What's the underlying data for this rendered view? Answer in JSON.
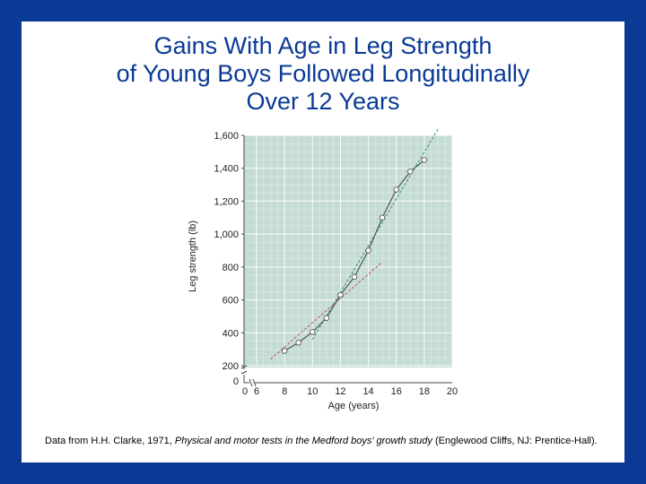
{
  "slide": {
    "title_lines": [
      "Gains With Age in Leg Strength",
      "of Young Boys Followed Longitudinally",
      "Over 12 Years"
    ],
    "citation": {
      "prefix": "Data from H.H. Clarke, 1971, ",
      "italic": "Physical and motor tests in the Medford boys' growth study",
      "suffix": " (Englewood Cliffs, NJ: Prentice-Hall)."
    },
    "colors": {
      "background_border": "#0a3a96",
      "title": "#0a3a96",
      "plot_background": "#c5dcd4",
      "grid": "#ffffff",
      "data_line": "#555555",
      "markers": "#ffffff",
      "trend_early": "#c0506a",
      "trend_late": "#2e8c8c"
    }
  },
  "chart_data": {
    "type": "line",
    "title": "",
    "xlabel": "Age (years)",
    "ylabel": "Leg strength (lb)",
    "x_ticks": [
      "0",
      "6",
      "8",
      "10",
      "12",
      "14",
      "16",
      "18",
      "20"
    ],
    "y_ticks": [
      "0",
      "200",
      "400",
      "600",
      "800",
      "1,000",
      "1,200",
      "1,400",
      "1,600"
    ],
    "xlim": [
      6,
      20
    ],
    "ylim": [
      200,
      1600
    ],
    "axis_break": true,
    "grid": true,
    "series": [
      {
        "x": [
          8,
          9,
          10,
          11,
          12,
          13,
          14,
          15,
          16,
          17,
          18
        ],
        "y": [
          290,
          340,
          405,
          490,
          630,
          740,
          900,
          1100,
          1270,
          1380,
          1450
        ]
      }
    ],
    "trend_lines": [
      {
        "x": [
          7,
          15
        ],
        "y": [
          240,
          830
        ]
      },
      {
        "x": [
          10,
          19
        ],
        "y": [
          360,
          1640
        ]
      }
    ]
  }
}
